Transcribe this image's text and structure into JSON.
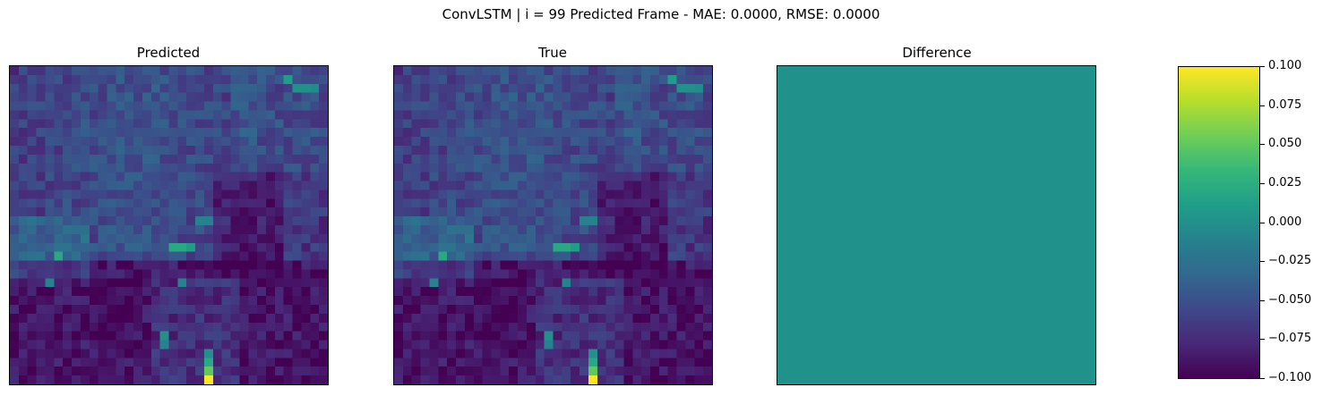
{
  "chart_data": {
    "suptitle": "ConvLSTM | i = 99 Predicted Frame - MAE: 0.0000, RMSE: 0.0000",
    "panels": [
      {
        "type": "heatmap",
        "title": "Predicted",
        "grid": "36x36",
        "cmap": "viridis",
        "content": "field"
      },
      {
        "type": "heatmap",
        "title": "True",
        "grid": "36x36",
        "cmap": "viridis",
        "content": "field"
      },
      {
        "type": "heatmap",
        "title": "Difference",
        "grid": "36x36",
        "cmap": "viridis",
        "content": "uniform",
        "value": 0.0
      }
    ],
    "colorbar": {
      "cmap": "viridis",
      "range": [
        -0.1,
        0.1
      ],
      "ticks": [
        0.1,
        0.075,
        0.05,
        0.025,
        0.0,
        -0.025,
        -0.05,
        -0.075,
        -0.1
      ],
      "tick_labels": [
        "0.100",
        "0.075",
        "0.050",
        "0.025",
        "0.000",
        "−0.025",
        "−0.050",
        "−0.075",
        "−0.100"
      ]
    },
    "colors": {
      "viridis": [
        "#440154",
        "#482878",
        "#3e4989",
        "#31688e",
        "#26828e",
        "#1f9e89",
        "#35b779",
        "#6ece58",
        "#b5de2b",
        "#fde725"
      ],
      "difference_fill": "#21918c"
    }
  }
}
